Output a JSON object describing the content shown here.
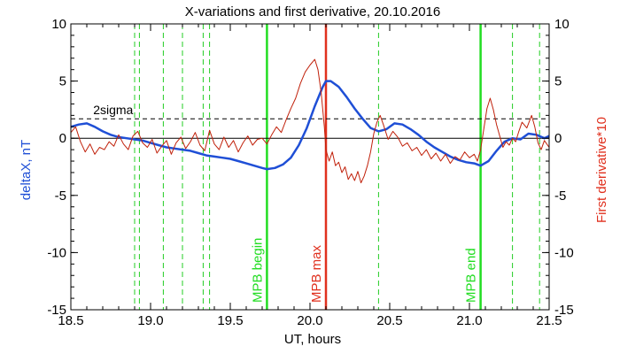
{
  "chart_data": {
    "type": "line",
    "title": "X-variations and first derivative, 20.10.2016",
    "xlabel": "UT, hours",
    "ylabel_left": "deltaX, nT",
    "ylabel_right": "First derivative*10",
    "xlim": [
      18.5,
      21.5
    ],
    "ylim": [
      -15,
      10
    ],
    "x_ticks": [
      "18.5",
      "19.0",
      "19.5",
      "20.0",
      "20.5",
      "21.0",
      "21.5"
    ],
    "y_ticks_left": [
      "-15",
      "-10",
      "-5",
      "0",
      "5",
      "10"
    ],
    "y_ticks_right": [
      "-15",
      "-10",
      "-5",
      "0",
      "5",
      "10"
    ],
    "colors": {
      "deltaX": "#1f4fd6",
      "derivative": "#c0200a",
      "mpb_edge": "#22dd22",
      "mpb_max": "#e0301e",
      "grid_dash": "#22cc22",
      "sigma": "#000000"
    },
    "sigma": {
      "label": "2sigma",
      "y": 1.7
    },
    "dashed_vlines": [
      18.9,
      18.93,
      19.08,
      19.2,
      19.33,
      19.37,
      20.43,
      21.27,
      21.44
    ],
    "markers": [
      {
        "label": "MPB begin",
        "x": 19.73
      },
      {
        "label": "MPB max",
        "x": 20.1
      },
      {
        "label": "MPB end",
        "x": 21.07
      }
    ],
    "series": [
      {
        "name": "deltaX",
        "points": [
          [
            18.5,
            1.0
          ],
          [
            18.55,
            1.2
          ],
          [
            18.6,
            1.3
          ],
          [
            18.65,
            1.0
          ],
          [
            18.7,
            0.6
          ],
          [
            18.75,
            0.3
          ],
          [
            18.8,
            0.1
          ],
          [
            18.85,
            0.0
          ],
          [
            18.9,
            -0.1
          ],
          [
            18.95,
            -0.2
          ],
          [
            19.0,
            -0.4
          ],
          [
            19.05,
            -0.6
          ],
          [
            19.1,
            -0.8
          ],
          [
            19.15,
            -0.9
          ],
          [
            19.2,
            -1.0
          ],
          [
            19.25,
            -1.1
          ],
          [
            19.3,
            -1.3
          ],
          [
            19.35,
            -1.5
          ],
          [
            19.4,
            -1.6
          ],
          [
            19.45,
            -1.7
          ],
          [
            19.5,
            -1.8
          ],
          [
            19.55,
            -2.0
          ],
          [
            19.6,
            -2.2
          ],
          [
            19.65,
            -2.4
          ],
          [
            19.7,
            -2.6
          ],
          [
            19.73,
            -2.7
          ],
          [
            19.78,
            -2.6
          ],
          [
            19.83,
            -2.3
          ],
          [
            19.88,
            -1.7
          ],
          [
            19.93,
            -0.6
          ],
          [
            19.98,
            0.9
          ],
          [
            20.03,
            2.8
          ],
          [
            20.08,
            4.5
          ],
          [
            20.1,
            5.0
          ],
          [
            20.13,
            5.0
          ],
          [
            20.18,
            4.5
          ],
          [
            20.23,
            3.6
          ],
          [
            20.28,
            2.6
          ],
          [
            20.33,
            1.7
          ],
          [
            20.38,
            0.9
          ],
          [
            20.43,
            0.6
          ],
          [
            20.48,
            0.8
          ],
          [
            20.53,
            1.3
          ],
          [
            20.58,
            1.2
          ],
          [
            20.63,
            0.8
          ],
          [
            20.68,
            0.3
          ],
          [
            20.73,
            -0.3
          ],
          [
            20.78,
            -0.8
          ],
          [
            20.83,
            -1.2
          ],
          [
            20.88,
            -1.6
          ],
          [
            20.93,
            -1.9
          ],
          [
            20.98,
            -2.1
          ],
          [
            21.03,
            -2.2
          ],
          [
            21.07,
            -2.4
          ],
          [
            21.12,
            -2.0
          ],
          [
            21.17,
            -1.1
          ],
          [
            21.22,
            -0.3
          ],
          [
            21.27,
            0.0
          ],
          [
            21.32,
            -0.1
          ],
          [
            21.37,
            0.4
          ],
          [
            21.42,
            0.3
          ],
          [
            21.47,
            0.0
          ],
          [
            21.5,
            0.2
          ]
        ]
      },
      {
        "name": "derivative",
        "points": [
          [
            18.5,
            0.5
          ],
          [
            18.53,
            1.0
          ],
          [
            18.56,
            -0.3
          ],
          [
            18.59,
            -1.2
          ],
          [
            18.62,
            -0.5
          ],
          [
            18.65,
            -1.4
          ],
          [
            18.68,
            -0.8
          ],
          [
            18.71,
            -1.0
          ],
          [
            18.74,
            -0.3
          ],
          [
            18.77,
            -0.7
          ],
          [
            18.8,
            0.3
          ],
          [
            18.83,
            -0.5
          ],
          [
            18.86,
            -1.0
          ],
          [
            18.89,
            0.2
          ],
          [
            18.92,
            0.6
          ],
          [
            18.95,
            -0.4
          ],
          [
            18.98,
            -0.8
          ],
          [
            19.01,
            -0.1
          ],
          [
            19.04,
            -1.3
          ],
          [
            19.07,
            -0.7
          ],
          [
            19.1,
            -0.2
          ],
          [
            19.13,
            -1.4
          ],
          [
            19.16,
            -0.4
          ],
          [
            19.19,
            0.1
          ],
          [
            19.22,
            -0.9
          ],
          [
            19.25,
            -0.3
          ],
          [
            19.28,
            0.5
          ],
          [
            19.31,
            -0.6
          ],
          [
            19.34,
            -1.1
          ],
          [
            19.37,
            0.7
          ],
          [
            19.4,
            -0.5
          ],
          [
            19.43,
            -1.0
          ],
          [
            19.46,
            0.1
          ],
          [
            19.49,
            -0.8
          ],
          [
            19.52,
            -0.2
          ],
          [
            19.55,
            -1.2
          ],
          [
            19.58,
            -0.4
          ],
          [
            19.61,
            0.2
          ],
          [
            19.64,
            -0.6
          ],
          [
            19.67,
            -0.1
          ],
          [
            19.7,
            0.0
          ],
          [
            19.73,
            -0.5
          ],
          [
            19.76,
            0.3
          ],
          [
            19.79,
            1.0
          ],
          [
            19.82,
            0.5
          ],
          [
            19.85,
            1.6
          ],
          [
            19.88,
            2.6
          ],
          [
            19.91,
            3.5
          ],
          [
            19.94,
            4.8
          ],
          [
            19.97,
            5.8
          ],
          [
            20.0,
            6.4
          ],
          [
            20.03,
            6.9
          ],
          [
            20.05,
            6.0
          ],
          [
            20.07,
            4.0
          ],
          [
            20.09,
            1.0
          ],
          [
            20.1,
            -1.0
          ],
          [
            20.12,
            -2.0
          ],
          [
            20.14,
            -1.2
          ],
          [
            20.16,
            -2.4
          ],
          [
            20.18,
            -2.1
          ],
          [
            20.2,
            -3.0
          ],
          [
            20.22,
            -2.5
          ],
          [
            20.24,
            -3.6
          ],
          [
            20.26,
            -3.1
          ],
          [
            20.28,
            -3.7
          ],
          [
            20.3,
            -2.9
          ],
          [
            20.32,
            -3.9
          ],
          [
            20.34,
            -3.3
          ],
          [
            20.36,
            -2.4
          ],
          [
            20.38,
            -1.2
          ],
          [
            20.4,
            0.4
          ],
          [
            20.42,
            1.4
          ],
          [
            20.44,
            2.0
          ],
          [
            20.46,
            1.2
          ],
          [
            20.49,
            -0.1
          ],
          [
            20.52,
            0.6
          ],
          [
            20.55,
            0.1
          ],
          [
            20.58,
            -0.7
          ],
          [
            20.61,
            -0.4
          ],
          [
            20.64,
            -1.1
          ],
          [
            20.67,
            -0.8
          ],
          [
            20.7,
            -1.5
          ],
          [
            20.73,
            -1.0
          ],
          [
            20.76,
            -1.8
          ],
          [
            20.79,
            -1.3
          ],
          [
            20.82,
            -2.0
          ],
          [
            20.85,
            -1.4
          ],
          [
            20.88,
            -2.2
          ],
          [
            20.91,
            -1.6
          ],
          [
            20.94,
            -1.9
          ],
          [
            20.97,
            -1.2
          ],
          [
            21.0,
            -1.7
          ],
          [
            21.03,
            -1.4
          ],
          [
            21.05,
            -2.0
          ],
          [
            21.07,
            -1.0
          ],
          [
            21.09,
            0.8
          ],
          [
            21.11,
            2.6
          ],
          [
            21.13,
            3.5
          ],
          [
            21.15,
            2.5
          ],
          [
            21.17,
            1.2
          ],
          [
            21.19,
            0.2
          ],
          [
            21.21,
            -0.8
          ],
          [
            21.23,
            -0.3
          ],
          [
            21.25,
            -0.6
          ],
          [
            21.27,
            0.0
          ],
          [
            21.29,
            -0.3
          ],
          [
            21.31,
            0.6
          ],
          [
            21.33,
            1.4
          ],
          [
            21.36,
            0.9
          ],
          [
            21.39,
            2.0
          ],
          [
            21.41,
            1.0
          ],
          [
            21.43,
            -0.4
          ],
          [
            21.45,
            -1.0
          ],
          [
            21.47,
            -0.2
          ],
          [
            21.5,
            -0.8
          ]
        ]
      }
    ]
  }
}
